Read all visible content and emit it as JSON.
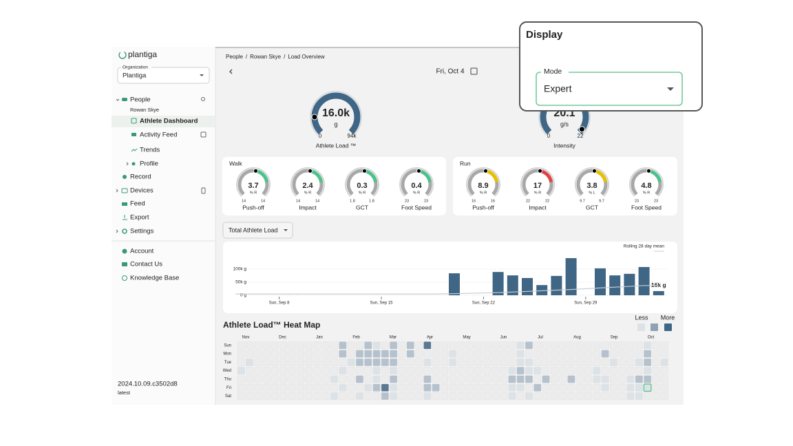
{
  "sidebar": {
    "logo": "plantiga",
    "org_label": "Organization",
    "org_value": "Plantiga",
    "people": "People",
    "athlete": "Rowan Skye",
    "athlete_dashboard": "Athlete Dashboard",
    "activity_feed": "Activity Feed",
    "trends": "Trends",
    "profile": "Profile",
    "record": "Record",
    "devices": "Devices",
    "feed": "Feed",
    "export": "Export",
    "settings": "Settings",
    "account": "Account",
    "contact": "Contact Us",
    "knowledge_base": "Knowledge Base",
    "version": "2024.10.09.c3502d8",
    "channel": "latest"
  },
  "breadcrumb": [
    "People",
    "Rowan Skye",
    "Load Overview"
  ],
  "date": "Fri, Oct 4",
  "main_gauges": [
    {
      "label": "Athlete Load ™",
      "value": "16.0k",
      "unit": "g",
      "min": 0,
      "max": "94k",
      "dot_angle": -90
    },
    {
      "label": "Intensity",
      "value": "20.1",
      "unit": "g/s",
      "min": 0,
      "max": 22,
      "dot_angle": 125
    }
  ],
  "walk": {
    "title": "Walk",
    "gauges": [
      {
        "label": "Push-off",
        "value": 3.7,
        "unit": "% R",
        "min": 14,
        "max": 14,
        "color": "#4cc38a"
      },
      {
        "label": "Impact",
        "value": 2.4,
        "unit": "% R",
        "min": 14,
        "max": 14,
        "color": "#4cc38a"
      },
      {
        "label": "GCT",
        "value": 0.3,
        "unit": "% R",
        "min": 1.8,
        "max": 1.8,
        "color": "#4cc38a"
      },
      {
        "label": "Foot Speed",
        "value": 0.4,
        "unit": "% R",
        "min": 23,
        "max": 23,
        "color": "#4cc38a"
      }
    ]
  },
  "run": {
    "title": "Run",
    "gauges": [
      {
        "label": "Push-off",
        "value": 8.9,
        "unit": "% R",
        "min": 16,
        "max": 16,
        "color": "#e5c100"
      },
      {
        "label": "Impact",
        "value": 17,
        "unit": "% R",
        "min": 22,
        "max": 22,
        "color": "#e04545"
      },
      {
        "label": "GCT",
        "value": 3.8,
        "unit": "% L",
        "min": 9.7,
        "max": 9.7,
        "color": "#e5c100"
      },
      {
        "label": "Foot Speed",
        "value": 4.8,
        "unit": "% R",
        "min": 23,
        "max": 23,
        "color": "#4cc38a"
      }
    ]
  },
  "load_chart": {
    "type": "bar",
    "dropdown": "Total Athlete Load",
    "legend": "Rolling 28 day mean",
    "x": [
      "Sep 20",
      "Sep 23",
      "Sep 24",
      "Sep 25",
      "Sep 26",
      "Sep 27",
      "Sep 28",
      "Sep 30",
      "Oct 1",
      "Oct 2",
      "Oct 3",
      "Oct 4"
    ],
    "values": [
      84000,
      89000,
      76000,
      66000,
      39000,
      74000,
      142000,
      103000,
      76000,
      82000,
      108000,
      16000
    ],
    "value_labels": [
      null,
      null,
      null,
      null,
      null,
      null,
      null,
      null,
      null,
      null,
      null,
      "16k g"
    ],
    "color": "#3f6685",
    "xlim": [
      "Sep 5",
      "Oct 5"
    ],
    "xticks": [
      {
        "value": "Sep 8",
        "label": "Sun, Sep 8"
      },
      {
        "value": "Sep 15",
        "label": "Sun, Sep 15"
      },
      {
        "value": "Sep 22",
        "label": "Sun, Sep 22"
      },
      {
        "value": "Sep 29",
        "label": "Sun, Sep 29"
      }
    ],
    "ylim": [
      0,
      160000
    ],
    "yticks": [
      {
        "value": 0,
        "label": "0 g"
      },
      {
        "value": 50000,
        "label": "50k g"
      },
      {
        "value": 100000,
        "label": "100k g"
      }
    ],
    "rolling_mean": {
      "color": "#c8cdd2",
      "x": [
        "Sep 5",
        "Sep 19",
        "Sep 23",
        "Sep 28",
        "Oct 3",
        "Oct 4"
      ],
      "values": [
        5000,
        5000,
        10000,
        22000,
        37000,
        37000
      ]
    }
  },
  "heatmap": {
    "title": "Athlete Load™ Heat Map",
    "less": "Less",
    "more": "More",
    "months": [
      "Nov",
      "Dec",
      "Jan",
      "Feb",
      "Mar",
      "Apr",
      "May",
      "Jun",
      "Jul",
      "Aug",
      "Sep",
      "Oct"
    ],
    "days": [
      "Sun",
      "Mon",
      "Tue",
      "Wed",
      "Thu",
      "Fri",
      "Sat"
    ],
    "cells": [
      [
        12,
        0,
        2
      ],
      [
        15,
        0,
        2
      ],
      [
        16,
        0,
        1
      ],
      [
        18,
        0,
        2
      ],
      [
        20,
        0,
        2
      ],
      [
        22,
        0,
        3
      ],
      [
        33,
        0,
        1
      ],
      [
        34,
        0,
        2
      ],
      [
        48,
        0,
        1
      ],
      [
        12,
        1,
        2
      ],
      [
        14,
        1,
        2
      ],
      [
        15,
        1,
        2
      ],
      [
        16,
        1,
        2
      ],
      [
        17,
        1,
        2
      ],
      [
        18,
        1,
        2
      ],
      [
        20,
        1,
        2
      ],
      [
        25,
        1,
        1
      ],
      [
        33,
        1,
        1
      ],
      [
        43,
        1,
        2
      ],
      [
        48,
        1,
        2
      ],
      [
        1,
        2,
        1
      ],
      [
        13,
        2,
        1
      ],
      [
        14,
        2,
        2
      ],
      [
        15,
        2,
        2
      ],
      [
        16,
        2,
        2
      ],
      [
        17,
        2,
        2
      ],
      [
        18,
        2,
        2
      ],
      [
        22,
        2,
        1
      ],
      [
        25,
        2,
        1
      ],
      [
        33,
        2,
        1
      ],
      [
        34,
        2,
        1
      ],
      [
        44,
        2,
        1
      ],
      [
        47,
        2,
        1
      ],
      [
        48,
        2,
        2
      ],
      [
        50,
        2,
        1
      ],
      [
        0,
        3,
        1
      ],
      [
        12,
        3,
        1
      ],
      [
        16,
        3,
        1
      ],
      [
        18,
        3,
        1
      ],
      [
        32,
        3,
        1
      ],
      [
        33,
        3,
        2
      ],
      [
        34,
        3,
        1
      ],
      [
        35,
        3,
        1
      ],
      [
        42,
        3,
        1
      ],
      [
        48,
        3,
        1
      ],
      [
        11,
        4,
        1
      ],
      [
        14,
        4,
        2
      ],
      [
        16,
        4,
        1
      ],
      [
        18,
        4,
        2
      ],
      [
        22,
        4,
        2
      ],
      [
        32,
        4,
        2
      ],
      [
        33,
        4,
        2
      ],
      [
        34,
        4,
        2
      ],
      [
        36,
        4,
        2
      ],
      [
        39,
        4,
        2
      ],
      [
        42,
        4,
        1
      ],
      [
        43,
        4,
        1
      ],
      [
        46,
        4,
        1
      ],
      [
        47,
        4,
        2
      ],
      [
        48,
        4,
        2
      ],
      [
        12,
        5,
        1
      ],
      [
        15,
        5,
        1
      ],
      [
        16,
        5,
        2
      ],
      [
        17,
        5,
        3
      ],
      [
        18,
        5,
        1
      ],
      [
        22,
        5,
        2
      ],
      [
        23,
        5,
        2
      ],
      [
        32,
        5,
        1
      ],
      [
        33,
        5,
        1
      ],
      [
        35,
        5,
        2
      ],
      [
        43,
        5,
        1
      ],
      [
        46,
        5,
        1
      ],
      [
        47,
        5,
        1
      ],
      [
        48,
        5,
        1
      ],
      [
        11,
        6,
        1
      ],
      [
        14,
        6,
        1
      ],
      [
        17,
        6,
        2
      ],
      [
        18,
        6,
        1
      ],
      [
        22,
        6,
        1
      ],
      [
        32,
        6,
        1
      ],
      [
        34,
        6,
        1
      ],
      [
        46,
        6,
        1
      ],
      [
        47,
        6,
        1
      ]
    ]
  },
  "display": {
    "title": "Display",
    "mode_label": "Mode",
    "mode_value": "Expert"
  }
}
